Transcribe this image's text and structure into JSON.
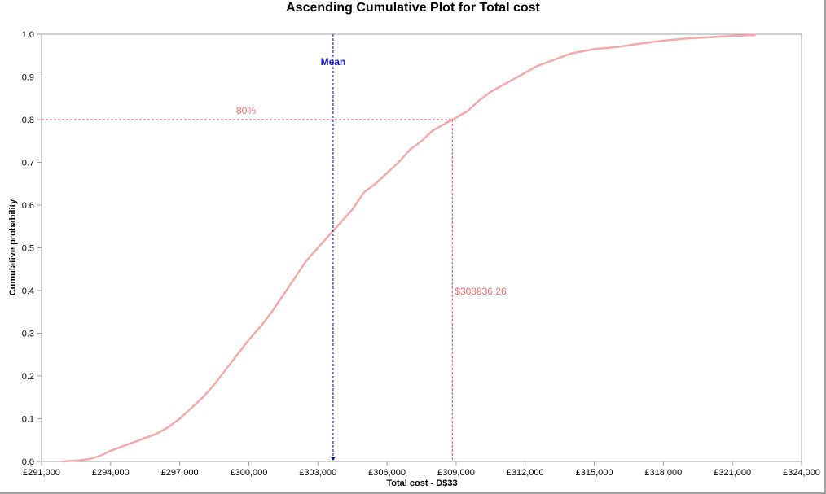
{
  "chart_data": {
    "type": "line",
    "title": "Ascending Cumulative Plot for Total cost",
    "xlabel": "Total cost - D$33",
    "ylabel": "Cumulative  probability",
    "xlim": [
      291000,
      324000
    ],
    "ylim": [
      0.0,
      1.0
    ],
    "x_ticks": [
      "£291,000",
      "£294,000",
      "£297,000",
      "£300,000",
      "£303,000",
      "£306,000",
      "£309,000",
      "£312,000",
      "£315,000",
      "£318,000",
      "£321,000",
      "£324,000"
    ],
    "y_ticks": [
      "0.0",
      "0.1",
      "0.2",
      "0.3",
      "0.4",
      "0.5",
      "0.6",
      "0.7",
      "0.8",
      "0.9",
      "1.0"
    ],
    "grid": false,
    "legend": null,
    "series": [
      {
        "name": "Total cost",
        "color": "#f4aaa8",
        "x": [
          291900,
          292500,
          293000,
          293500,
          294000,
          294500,
          295000,
          295500,
          296000,
          296500,
          297000,
          297500,
          298000,
          298500,
          299000,
          299500,
          300000,
          300500,
          301000,
          301500,
          302000,
          302500,
          303000,
          303660,
          304000,
          304500,
          305000,
          305500,
          306000,
          306500,
          307000,
          307500,
          308000,
          308500,
          308836,
          309500,
          310000,
          310500,
          311000,
          311500,
          312000,
          312500,
          313000,
          313500,
          314000,
          314500,
          315000,
          316000,
          317000,
          318000,
          319000,
          320000,
          321000,
          322000
        ],
        "y": [
          0.0,
          0.002,
          0.005,
          0.012,
          0.025,
          0.035,
          0.045,
          0.055,
          0.065,
          0.08,
          0.1,
          0.125,
          0.15,
          0.18,
          0.215,
          0.25,
          0.285,
          0.315,
          0.35,
          0.39,
          0.43,
          0.47,
          0.5,
          0.54,
          0.56,
          0.59,
          0.63,
          0.65,
          0.675,
          0.7,
          0.73,
          0.75,
          0.775,
          0.79,
          0.8,
          0.82,
          0.845,
          0.865,
          0.88,
          0.895,
          0.91,
          0.925,
          0.935,
          0.945,
          0.955,
          0.96,
          0.965,
          0.97,
          0.978,
          0.985,
          0.99,
          0.993,
          0.996,
          0.998
        ]
      }
    ],
    "annotations": [
      {
        "type": "vline",
        "label": "Mean",
        "x": 303660,
        "color": "#0000aa",
        "style": "dashed"
      },
      {
        "type": "hline",
        "label": "80%",
        "y": 0.8,
        "color": "#e05050",
        "style": "dashed"
      },
      {
        "type": "vline",
        "label": "$308836.26",
        "x": 308836.26,
        "color": "#e05050",
        "style": "dashed"
      }
    ]
  },
  "labels": {
    "title": "Ascending Cumulative Plot for Total cost",
    "xlabel": "Total cost - D$33",
    "ylabel": "Cumulative  probability",
    "mean": "Mean",
    "pct": "80%",
    "value": "$308836.26"
  }
}
